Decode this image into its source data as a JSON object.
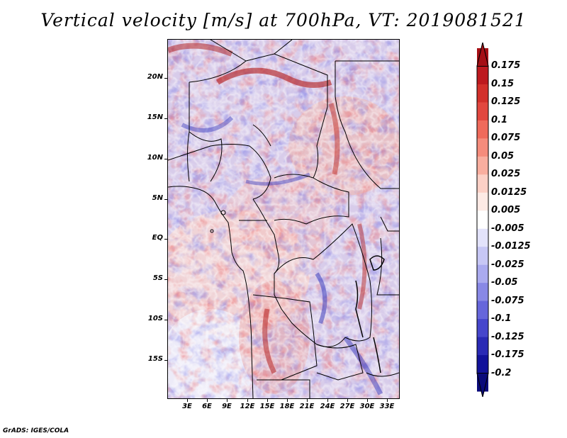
{
  "title": "Vertical velocity [m/s] at 700hPa, VT: 2019081521",
  "credit": "GrADS: IGES/COLA",
  "map": {
    "lat_labels": [
      "20N",
      "15N",
      "10N",
      "5N",
      "EQ",
      "5S",
      "10S",
      "15S"
    ],
    "lon_labels": [
      "3E",
      "6E",
      "9E",
      "12E",
      "15E",
      "18E",
      "21E",
      "24E",
      "27E",
      "30E",
      "33E"
    ]
  },
  "colorbar": {
    "levels": [
      "0.175",
      "0.15",
      "0.125",
      "0.1",
      "0.075",
      "0.05",
      "0.025",
      "0.0125",
      "0.005",
      "-0.005",
      "-0.0125",
      "-0.025",
      "-0.05",
      "-0.075",
      "-0.1",
      "-0.125",
      "-0.175",
      "-0.2"
    ],
    "colors": [
      "#a50f15",
      "#bd1a1f",
      "#d2302b",
      "#e2473f",
      "#ef6a5b",
      "#f58c7c",
      "#f9ae9f",
      "#fcd0c6",
      "#fdeae5",
      "#ffffff",
      "#e3e3fb",
      "#c7c7f5",
      "#aaaaef",
      "#8888e6",
      "#6666db",
      "#4646cc",
      "#2a2ab5",
      "#12129a",
      "#0a0a7a"
    ]
  }
}
